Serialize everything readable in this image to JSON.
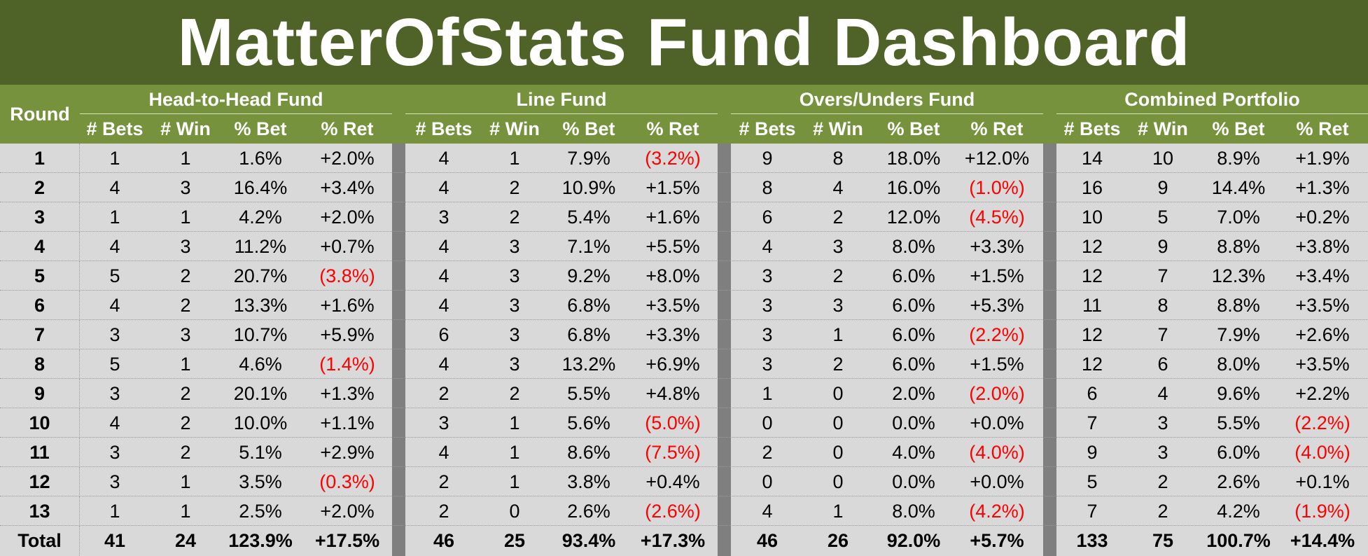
{
  "title": "MatterOfStats Fund Dashboard",
  "round_label": "Round",
  "column_labels": [
    "# Bets",
    "# Win",
    "% Bet",
    "% Ret"
  ],
  "groups": [
    {
      "name": "Head-to-Head Fund"
    },
    {
      "name": "Line Fund"
    },
    {
      "name": "Overs/Unders Fund"
    },
    {
      "name": "Combined Portfolio"
    }
  ],
  "colors": {
    "title_bg": "#4f6228",
    "header_bg": "#76923c",
    "body_bg": "#d9d9d9",
    "separator": "#7f7f7f",
    "negative": "#ff0000"
  },
  "rows": [
    {
      "round": "1",
      "funds": [
        [
          "1",
          "1",
          "1.6%",
          "+2.0%"
        ],
        [
          "4",
          "1",
          "7.9%",
          "(3.2%)"
        ],
        [
          "9",
          "8",
          "18.0%",
          "+12.0%"
        ],
        [
          "14",
          "10",
          "8.9%",
          "+1.9%"
        ]
      ]
    },
    {
      "round": "2",
      "funds": [
        [
          "4",
          "3",
          "16.4%",
          "+3.4%"
        ],
        [
          "4",
          "2",
          "10.9%",
          "+1.5%"
        ],
        [
          "8",
          "4",
          "16.0%",
          "(1.0%)"
        ],
        [
          "16",
          "9",
          "14.4%",
          "+1.3%"
        ]
      ]
    },
    {
      "round": "3",
      "funds": [
        [
          "1",
          "1",
          "4.2%",
          "+2.0%"
        ],
        [
          "3",
          "2",
          "5.4%",
          "+1.6%"
        ],
        [
          "6",
          "2",
          "12.0%",
          "(4.5%)"
        ],
        [
          "10",
          "5",
          "7.0%",
          "+0.2%"
        ]
      ]
    },
    {
      "round": "4",
      "funds": [
        [
          "4",
          "3",
          "11.2%",
          "+0.7%"
        ],
        [
          "4",
          "3",
          "7.1%",
          "+5.5%"
        ],
        [
          "4",
          "3",
          "8.0%",
          "+3.3%"
        ],
        [
          "12",
          "9",
          "8.8%",
          "+3.8%"
        ]
      ]
    },
    {
      "round": "5",
      "funds": [
        [
          "5",
          "2",
          "20.7%",
          "(3.8%)"
        ],
        [
          "4",
          "3",
          "9.2%",
          "+8.0%"
        ],
        [
          "3",
          "2",
          "6.0%",
          "+1.5%"
        ],
        [
          "12",
          "7",
          "12.3%",
          "+3.4%"
        ]
      ]
    },
    {
      "round": "6",
      "funds": [
        [
          "4",
          "2",
          "13.3%",
          "+1.6%"
        ],
        [
          "4",
          "3",
          "6.8%",
          "+3.5%"
        ],
        [
          "3",
          "3",
          "6.0%",
          "+5.3%"
        ],
        [
          "11",
          "8",
          "8.8%",
          "+3.5%"
        ]
      ]
    },
    {
      "round": "7",
      "funds": [
        [
          "3",
          "3",
          "10.7%",
          "+5.9%"
        ],
        [
          "6",
          "3",
          "6.8%",
          "+3.3%"
        ],
        [
          "3",
          "1",
          "6.0%",
          "(2.2%)"
        ],
        [
          "12",
          "7",
          "7.9%",
          "+2.6%"
        ]
      ]
    },
    {
      "round": "8",
      "funds": [
        [
          "5",
          "1",
          "4.6%",
          "(1.4%)"
        ],
        [
          "4",
          "3",
          "13.2%",
          "+6.9%"
        ],
        [
          "3",
          "2",
          "6.0%",
          "+1.5%"
        ],
        [
          "12",
          "6",
          "8.0%",
          "+3.5%"
        ]
      ]
    },
    {
      "round": "9",
      "funds": [
        [
          "3",
          "2",
          "20.1%",
          "+1.3%"
        ],
        [
          "2",
          "2",
          "5.5%",
          "+4.8%"
        ],
        [
          "1",
          "0",
          "2.0%",
          "(2.0%)"
        ],
        [
          "6",
          "4",
          "9.6%",
          "+2.2%"
        ]
      ]
    },
    {
      "round": "10",
      "funds": [
        [
          "4",
          "2",
          "10.0%",
          "+1.1%"
        ],
        [
          "3",
          "1",
          "5.6%",
          "(5.0%)"
        ],
        [
          "0",
          "0",
          "0.0%",
          "+0.0%"
        ],
        [
          "7",
          "3",
          "5.5%",
          "(2.2%)"
        ]
      ]
    },
    {
      "round": "11",
      "funds": [
        [
          "3",
          "2",
          "5.1%",
          "+2.9%"
        ],
        [
          "4",
          "1",
          "8.6%",
          "(7.5%)"
        ],
        [
          "2",
          "0",
          "4.0%",
          "(4.0%)"
        ],
        [
          "9",
          "3",
          "6.0%",
          "(4.0%)"
        ]
      ]
    },
    {
      "round": "12",
      "funds": [
        [
          "3",
          "1",
          "3.5%",
          "(0.3%)"
        ],
        [
          "2",
          "1",
          "3.8%",
          "+0.4%"
        ],
        [
          "0",
          "0",
          "0.0%",
          "+0.0%"
        ],
        [
          "5",
          "2",
          "2.6%",
          "+0.1%"
        ]
      ]
    },
    {
      "round": "13",
      "funds": [
        [
          "1",
          "1",
          "2.5%",
          "+2.0%"
        ],
        [
          "2",
          "0",
          "2.6%",
          "(2.6%)"
        ],
        [
          "4",
          "1",
          "8.0%",
          "(4.2%)"
        ],
        [
          "7",
          "2",
          "4.2%",
          "(1.9%)"
        ]
      ]
    }
  ],
  "total": {
    "round": "Total",
    "funds": [
      [
        "41",
        "24",
        "123.9%",
        "+17.5%"
      ],
      [
        "46",
        "25",
        "93.4%",
        "+17.3%"
      ],
      [
        "46",
        "26",
        "92.0%",
        "+5.7%"
      ],
      [
        "133",
        "75",
        "100.7%",
        "+14.4%"
      ]
    ]
  }
}
